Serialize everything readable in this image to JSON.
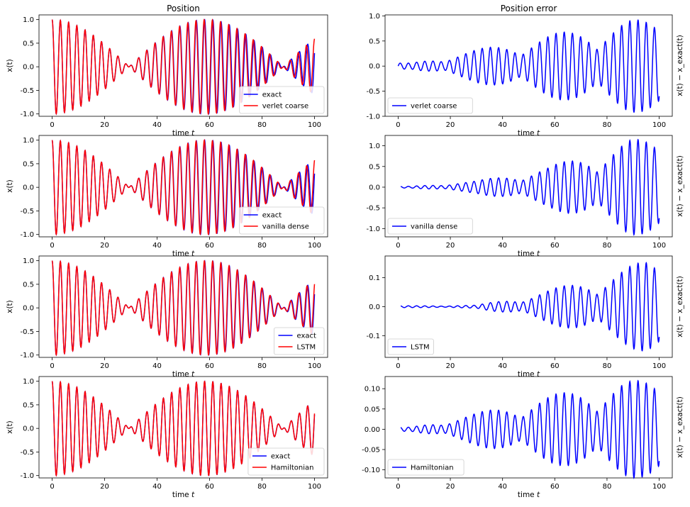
{
  "chart_data": [
    {
      "type": "line",
      "title": "Position",
      "xlabel": "time t",
      "ylabel": "x(t)",
      "xlim": [
        -5,
        105
      ],
      "ylim": [
        -1.05,
        1.1
      ],
      "xticks": [
        0,
        20,
        40,
        60,
        80,
        100
      ],
      "yticks": [
        -1.0,
        -0.5,
        0.0,
        0.5,
        1.0
      ],
      "legend": "lower-right",
      "series": [
        {
          "name": "exact",
          "color": "#0000ff"
        },
        {
          "name": "verlet coarse",
          "color": "#ff0000"
        }
      ],
      "model": {
        "omega": 1.0,
        "envelope_beat": 0.0535,
        "offset": 0.1
      },
      "grid": false
    },
    {
      "type": "line",
      "title": "Position error",
      "xlabel": "time t",
      "ylabel": "x(t) − x_exact(t)",
      "xlim": [
        -5,
        105
      ],
      "ylim": [
        -1.0,
        1.02
      ],
      "xticks": [
        0,
        20,
        40,
        60,
        80,
        100
      ],
      "yticks": [
        -1.0,
        -0.5,
        0.0,
        0.5,
        1.0
      ],
      "legend": "lower-left",
      "series": [
        {
          "name": "verlet coarse",
          "color": "#0000ff"
        }
      ],
      "model": {
        "amp_peaks": [
          [
            5,
            0.06
          ],
          [
            30,
            0.33
          ],
          [
            60,
            0.65
          ],
          [
            88,
            0.92
          ]
        ],
        "start": 0
      },
      "grid": false
    },
    {
      "type": "line",
      "title": "",
      "xlabel": "time t",
      "ylabel": "x(t)",
      "xlim": [
        -5,
        105
      ],
      "ylim": [
        -1.05,
        1.1
      ],
      "xticks": [
        0,
        20,
        40,
        60,
        80,
        100
      ],
      "yticks": [
        -1.0,
        -0.5,
        0.0,
        0.5,
        1.0
      ],
      "legend": "lower-right",
      "series": [
        {
          "name": "exact",
          "color": "#0000ff"
        },
        {
          "name": "vanilla dense",
          "color": "#ff0000"
        }
      ],
      "model": {
        "omega": 1.0,
        "envelope_beat": 0.0535,
        "offset": 0.1
      },
      "grid": false
    },
    {
      "type": "line",
      "title": "",
      "xlabel": "time t",
      "ylabel": "x(t) − x_exact(t)",
      "xlim": [
        -5,
        105
      ],
      "ylim": [
        -1.2,
        1.25
      ],
      "xticks": [
        0,
        20,
        40,
        60,
        80,
        100
      ],
      "yticks": [
        -1.0,
        -0.5,
        0.0,
        0.5,
        1.0
      ],
      "legend": "lower-left",
      "series": [
        {
          "name": "vanilla dense",
          "color": "#0000ff"
        }
      ],
      "model": {
        "amp_peaks": [
          [
            5,
            0.02
          ],
          [
            30,
            0.15
          ],
          [
            58,
            0.5
          ],
          [
            88,
            1.15
          ]
        ],
        "start": 1
      },
      "grid": false
    },
    {
      "type": "line",
      "title": "",
      "xlabel": "time t",
      "ylabel": "x(t)",
      "xlim": [
        -5,
        105
      ],
      "ylim": [
        -1.05,
        1.1
      ],
      "xticks": [
        0,
        20,
        40,
        60,
        80,
        100
      ],
      "yticks": [
        -1.0,
        -0.5,
        0.0,
        0.5,
        1.0
      ],
      "legend": "lower-right",
      "series": [
        {
          "name": "exact",
          "color": "#0000ff"
        },
        {
          "name": "LSTM",
          "color": "#ff0000"
        }
      ],
      "model": {
        "omega": 1.0,
        "envelope_beat": 0.0535,
        "offset": 0.1
      },
      "grid": false
    },
    {
      "type": "line",
      "title": "",
      "xlabel": "time t",
      "ylabel": "x(t) − x_exact(t)",
      "xlim": [
        -5,
        105
      ],
      "ylim": [
        -0.175,
        0.175
      ],
      "xticks": [
        0,
        20,
        40,
        60,
        80,
        100
      ],
      "yticks": [
        -0.1,
        0.0,
        0.1
      ],
      "legend": "lower-left",
      "series": [
        {
          "name": "LSTM",
          "color": "#0000ff"
        }
      ],
      "model": {
        "amp_peaks": [
          [
            5,
            0.003
          ],
          [
            30,
            0.005
          ],
          [
            50,
            0.04
          ],
          [
            75,
            0.1
          ],
          [
            95,
            0.16
          ]
        ],
        "start": 1
      },
      "grid": false
    },
    {
      "type": "line",
      "title": "",
      "xlabel": "time t",
      "ylabel": "x(t)",
      "xlim": [
        -5,
        105
      ],
      "ylim": [
        -1.05,
        1.1
      ],
      "xticks": [
        0,
        20,
        40,
        60,
        80,
        100
      ],
      "yticks": [
        -1.0,
        -0.5,
        0.0,
        0.5,
        1.0
      ],
      "legend": "lower-right",
      "series": [
        {
          "name": "exact",
          "color": "#0000ff"
        },
        {
          "name": "Hamiltonian",
          "color": "#ff0000"
        }
      ],
      "model": {
        "omega": 1.0,
        "envelope_beat": 0.0535,
        "offset": 0.1
      },
      "grid": false
    },
    {
      "type": "line",
      "title": "",
      "xlabel": "time t",
      "ylabel": "x(t) − x_exact(t)",
      "xlim": [
        -5,
        105
      ],
      "ylim": [
        -0.12,
        0.13
      ],
      "xticks": [
        0,
        20,
        40,
        60,
        80,
        100
      ],
      "yticks": [
        -0.1,
        -0.05,
        0.0,
        0.05,
        0.1
      ],
      "legend": "lower-left",
      "series": [
        {
          "name": "Hamiltonian",
          "color": "#0000ff"
        }
      ],
      "model": {
        "amp_peaks": [
          [
            5,
            0.005
          ],
          [
            30,
            0.04
          ],
          [
            55,
            0.08
          ],
          [
            86,
            0.12
          ]
        ],
        "start": 1
      },
      "grid": false
    }
  ]
}
